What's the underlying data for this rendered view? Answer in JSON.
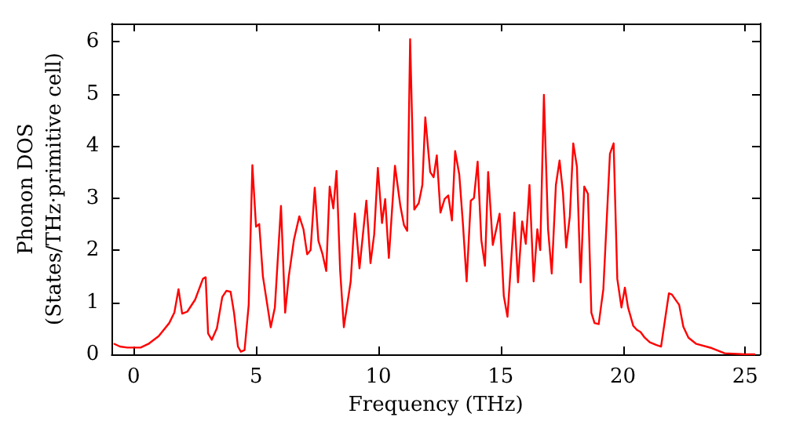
{
  "chart_data": {
    "type": "line",
    "xlabel": "Frequency (THz)",
    "ylabel": "Phonon DOS\n(States/THz·primitive cell)",
    "x": [
      -0.79,
      -0.57,
      -0.26,
      0.28,
      0.6,
      1.02,
      1.45,
      1.66,
      1.83,
      1.98,
      2.19,
      2.51,
      2.83,
      2.94,
      3.04,
      3.19,
      3.4,
      3.62,
      3.79,
      3.96,
      4.1,
      4.26,
      4.38,
      4.53,
      4.7,
      4.85,
      5.0,
      5.13,
      5.28,
      5.6,
      5.77,
      6.02,
      6.19,
      6.34,
      6.55,
      6.77,
      6.94,
      7.09,
      7.23,
      7.4,
      7.55,
      7.72,
      7.87,
      8.01,
      8.16,
      8.29,
      8.44,
      8.59,
      8.87,
      9.04,
      9.23,
      9.51,
      9.68,
      9.83,
      9.98,
      10.15,
      10.28,
      10.43,
      10.68,
      10.9,
      11.05,
      11.18,
      11.3,
      11.47,
      11.65,
      11.8,
      11.92,
      12.12,
      12.26,
      12.39,
      12.54,
      12.71,
      12.86,
      13.01,
      13.14,
      13.31,
      13.46,
      13.61,
      13.78,
      13.91,
      14.06,
      14.21,
      14.36,
      14.49,
      14.68,
      14.96,
      15.13,
      15.28,
      15.56,
      15.71,
      15.88,
      16.03,
      16.18,
      16.35,
      16.5,
      16.62,
      16.77,
      16.94,
      17.09,
      17.26,
      17.41,
      17.55,
      17.68,
      17.83,
      17.97,
      18.12,
      18.27,
      18.42,
      18.57,
      18.71,
      18.84,
      19.01,
      19.2,
      19.47,
      19.62,
      19.77,
      19.94,
      20.08,
      20.21,
      20.42,
      20.57,
      20.72,
      20.89,
      21.1,
      21.37,
      21.56,
      21.88,
      22.0,
      22.3,
      22.47,
      22.68,
      23.0,
      23.63,
      24.16,
      25.0,
      25.38
    ],
    "series": [
      {
        "color": "#ff0000",
        "values": [
          0.2,
          0.15,
          0.13,
          0.13,
          0.2,
          0.35,
          0.6,
          0.8,
          1.25,
          0.78,
          0.82,
          1.05,
          1.45,
          1.48,
          0.4,
          0.28,
          0.5,
          1.1,
          1.22,
          1.2,
          0.8,
          0.15,
          0.05,
          0.08,
          0.95,
          3.63,
          2.45,
          2.5,
          1.5,
          0.52,
          0.9,
          2.85,
          0.8,
          1.5,
          2.2,
          2.65,
          2.4,
          1.92,
          2.0,
          3.2,
          2.18,
          1.92,
          1.6,
          3.22,
          2.8,
          3.52,
          1.6,
          0.52,
          1.4,
          2.7,
          1.65,
          2.95,
          1.75,
          2.3,
          3.58,
          2.52,
          2.98,
          1.85,
          3.62,
          2.85,
          2.48,
          2.37,
          6.05,
          2.78,
          2.9,
          3.25,
          4.55,
          3.5,
          3.4,
          3.82,
          2.72,
          2.98,
          3.05,
          2.57,
          3.9,
          3.45,
          2.5,
          1.4,
          2.95,
          3.0,
          3.7,
          2.2,
          1.7,
          3.5,
          2.1,
          2.7,
          1.12,
          0.72,
          2.72,
          1.38,
          2.55,
          2.12,
          3.25,
          1.4,
          2.4,
          2.0,
          4.98,
          2.4,
          1.55,
          3.25,
          3.72,
          3.1,
          2.05,
          2.65,
          4.05,
          3.6,
          1.38,
          3.22,
          3.08,
          0.8,
          0.6,
          0.58,
          1.25,
          3.85,
          4.05,
          1.45,
          0.9,
          1.28,
          0.9,
          0.55,
          0.47,
          0.43,
          0.32,
          0.23,
          0.18,
          0.15,
          1.17,
          1.15,
          0.95,
          0.53,
          0.32,
          0.2,
          0.12,
          0.02,
          0.0,
          0.0
        ]
      }
    ],
    "xlim": [
      -0.9,
      25.6
    ],
    "xticks": [
      0,
      5,
      10,
      15,
      20,
      25
    ],
    "ylim": [
      0,
      6.35
    ],
    "yticks": [
      0,
      1,
      2,
      3,
      4,
      5,
      6
    ],
    "marker": "none",
    "line_style": "solid"
  }
}
